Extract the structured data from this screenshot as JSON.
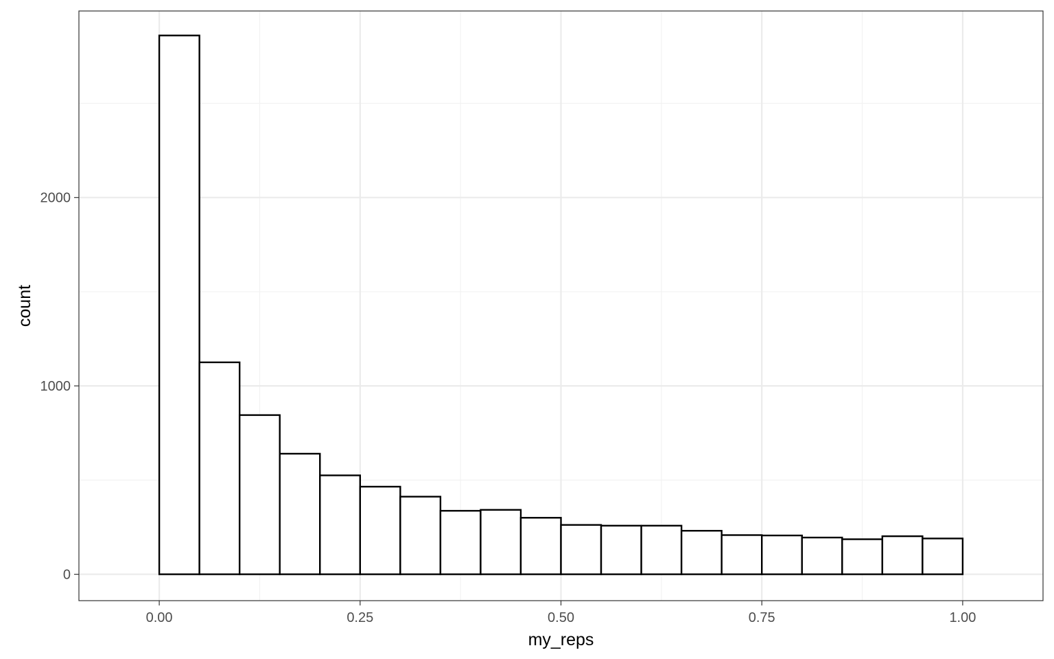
{
  "chart_data": {
    "type": "bar",
    "subtype": "histogram",
    "xlabel": "my_reps",
    "ylabel": "count",
    "xlim": [
      -0.1,
      1.1
    ],
    "ylim": [
      -140,
      2990
    ],
    "x_ticks": [
      0.0,
      0.25,
      0.5,
      0.75,
      1.0
    ],
    "x_tick_labels": [
      "0.00",
      "0.25",
      "0.50",
      "0.75",
      "1.00"
    ],
    "y_ticks": [
      0,
      1000,
      2000
    ],
    "y_tick_labels": [
      "0",
      "1000",
      "2000"
    ],
    "grid": true,
    "bin_width": 0.05,
    "bins": [
      {
        "x0": 0.0,
        "x1": 0.05,
        "count": 2860
      },
      {
        "x0": 0.05,
        "x1": 0.1,
        "count": 1125
      },
      {
        "x0": 0.1,
        "x1": 0.15,
        "count": 845
      },
      {
        "x0": 0.15,
        "x1": 0.2,
        "count": 640
      },
      {
        "x0": 0.2,
        "x1": 0.25,
        "count": 525
      },
      {
        "x0": 0.25,
        "x1": 0.3,
        "count": 465
      },
      {
        "x0": 0.3,
        "x1": 0.35,
        "count": 412
      },
      {
        "x0": 0.35,
        "x1": 0.4,
        "count": 337
      },
      {
        "x0": 0.4,
        "x1": 0.45,
        "count": 342
      },
      {
        "x0": 0.45,
        "x1": 0.5,
        "count": 300
      },
      {
        "x0": 0.5,
        "x1": 0.55,
        "count": 262
      },
      {
        "x0": 0.55,
        "x1": 0.6,
        "count": 258
      },
      {
        "x0": 0.6,
        "x1": 0.65,
        "count": 258
      },
      {
        "x0": 0.65,
        "x1": 0.7,
        "count": 231
      },
      {
        "x0": 0.7,
        "x1": 0.75,
        "count": 208
      },
      {
        "x0": 0.75,
        "x1": 0.8,
        "count": 206
      },
      {
        "x0": 0.8,
        "x1": 0.85,
        "count": 195
      },
      {
        "x0": 0.85,
        "x1": 0.9,
        "count": 186
      },
      {
        "x0": 0.9,
        "x1": 0.95,
        "count": 202
      },
      {
        "x0": 0.95,
        "x1": 1.0,
        "count": 190
      }
    ],
    "colors": {
      "bar_fill": "#ffffff",
      "bar_stroke": "#000000",
      "grid_major": "#ebebeb",
      "grid_minor": "#f2f2f2",
      "panel_border": "#333333",
      "tick_label": "#4d4d4d"
    }
  }
}
